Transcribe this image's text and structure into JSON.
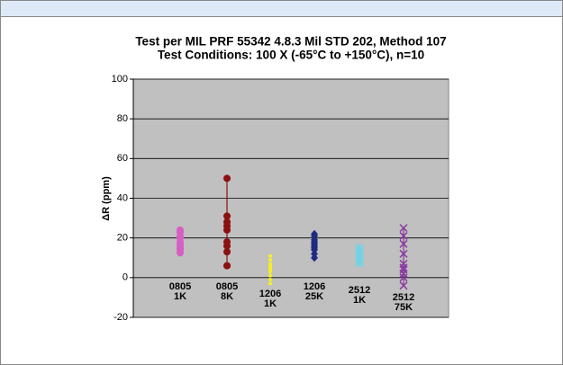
{
  "chart_data": {
    "type": "scatter",
    "title": [
      "Test per MIL PRF 55342 4.8.3 Mil STD 202, Method 107",
      "Test Conditions: 100 X (-65°C to +150°C), n=10"
    ],
    "ylabel": "ΔR (ppm)",
    "ylim": [
      -20,
      100
    ],
    "yticks": [
      -20,
      0,
      20,
      40,
      60,
      80,
      100
    ],
    "grid": true,
    "groups": [
      {
        "label": [
          "0805",
          "1K"
        ],
        "color": "#d65fc4",
        "marker": "circle",
        "range_line": false,
        "values": [
          12.5,
          14,
          15,
          16,
          17,
          18,
          20,
          21,
          23,
          24
        ]
      },
      {
        "label": [
          "0805",
          "8K"
        ],
        "color": "#8b1010",
        "marker": "circle",
        "range_line": true,
        "values": [
          6,
          6,
          13,
          16,
          18,
          24,
          26,
          28,
          31,
          50
        ]
      },
      {
        "label": [
          "1206",
          "1K"
        ],
        "color": "#f2ee2a",
        "marker": "dash",
        "range_line": true,
        "values": [
          -3,
          -1,
          1,
          3,
          4,
          5,
          6,
          7,
          9,
          11
        ]
      },
      {
        "label": [
          "1206",
          "25K"
        ],
        "color": "#1f2a80",
        "marker": "diamond",
        "range_line": false,
        "values": [
          10,
          12,
          14,
          15,
          16,
          17,
          18,
          19,
          21,
          22
        ]
      },
      {
        "label": [
          "2512",
          "1K"
        ],
        "color": "#6fd5e6",
        "marker": "asterisk",
        "range_line": false,
        "values": [
          7,
          8,
          9,
          10,
          11,
          12,
          13,
          14,
          15,
          15
        ]
      },
      {
        "label": [
          "2512",
          "75K"
        ],
        "color": "#8a3aa0",
        "marker": "x",
        "range_line": true,
        "values": [
          -4,
          0,
          2,
          4,
          5,
          7,
          12,
          17,
          21,
          25
        ]
      }
    ]
  }
}
